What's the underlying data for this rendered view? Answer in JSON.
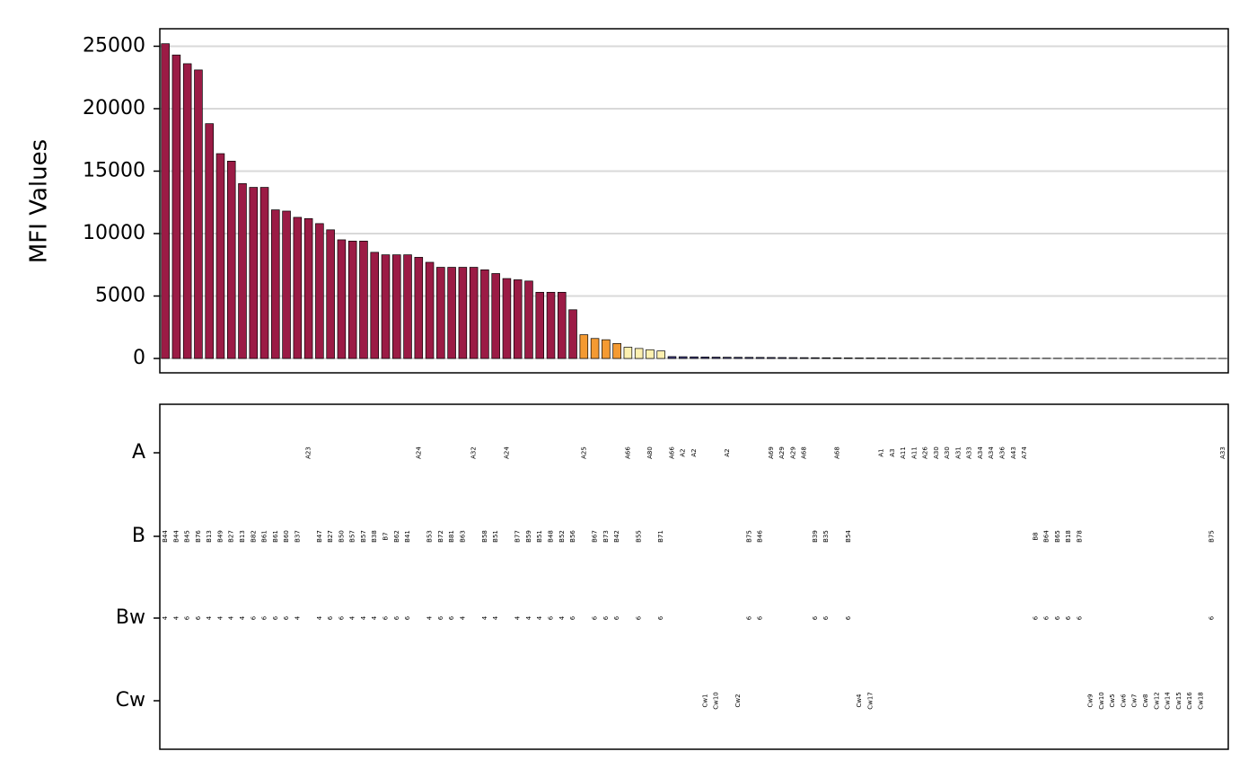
{
  "chart_data": {
    "type": "bar",
    "y_label": "MFI Values",
    "ylim": [
      -1150,
      26400
    ],
    "yticks": [
      0,
      5000,
      10000,
      15000,
      20000,
      25000
    ],
    "grid": true,
    "values": [
      25200,
      24300,
      23600,
      23100,
      18800,
      16400,
      15800,
      14000,
      13700,
      13700,
      11900,
      11800,
      11300,
      11200,
      10800,
      10300,
      9500,
      9400,
      9400,
      8500,
      8300,
      8300,
      8300,
      8100,
      7700,
      7300,
      7300,
      7300,
      7300,
      7100,
      6800,
      6400,
      6300,
      6200,
      5300,
      5300,
      5300,
      3900,
      1900,
      1600,
      1500,
      1200,
      900,
      800,
      700,
      600,
      150,
      140,
      130,
      120,
      110,
      100,
      95,
      90,
      85,
      80,
      75,
      70,
      65,
      60,
      55,
      50,
      45,
      40,
      38,
      36,
      34,
      32,
      30,
      28,
      26,
      24,
      22,
      20,
      19,
      18,
      17,
      16,
      15,
      14,
      13,
      12,
      11,
      10,
      9,
      8,
      7,
      6,
      5,
      5,
      4,
      4,
      3,
      3,
      2,
      2,
      1
    ],
    "colors": [
      "#9b1b45",
      "#9b1b45",
      "#9b1b45",
      "#9b1b45",
      "#9b1b45",
      "#9b1b45",
      "#9b1b45",
      "#9b1b45",
      "#9b1b45",
      "#9b1b45",
      "#9b1b45",
      "#9b1b45",
      "#9b1b45",
      "#9b1b45",
      "#9b1b45",
      "#9b1b45",
      "#9b1b45",
      "#9b1b45",
      "#9b1b45",
      "#9b1b45",
      "#9b1b45",
      "#9b1b45",
      "#9b1b45",
      "#9b1b45",
      "#9b1b45",
      "#9b1b45",
      "#9b1b45",
      "#9b1b45",
      "#9b1b45",
      "#9b1b45",
      "#9b1b45",
      "#9b1b45",
      "#9b1b45",
      "#9b1b45",
      "#9b1b45",
      "#9b1b45",
      "#9b1b45",
      "#9b1b45",
      "#f49a32",
      "#f49a32",
      "#f49a32",
      "#f49a32",
      "#fdf0b0",
      "#fdf0b0",
      "#fdf0b0",
      "#fdf0b0",
      "#3f3d7f",
      "#3f3d7f",
      "#3f3d7f",
      "#3f3d7f",
      "#3f3d7f",
      "#3f3d7f",
      "#3f3d7f",
      "#3f3d7f",
      "#3f3d7f",
      "#3f3d7f",
      "#3f3d7f",
      "#3f3d7f",
      "#3f3d7f",
      "#3f3d7f",
      "#3f3d7f",
      "#3f3d7f",
      "#3f3d7f",
      "#3f3d7f",
      "#3f3d7f",
      "#3f3d7f",
      "#3f3d7f",
      "#3f3d7f",
      "#3f3d7f",
      "#3f3d7f",
      "#3f3d7f",
      "#3f3d7f",
      "#3f3d7f",
      "#3f3d7f",
      "#3f3d7f",
      "#3f3d7f",
      "#3f3d7f",
      "#3f3d7f",
      "#3f3d7f",
      "#3f3d7f",
      "#3f3d7f",
      "#3f3d7f",
      "#3f3d7f",
      "#3f3d7f",
      "#3f3d7f",
      "#3f3d7f",
      "#3f3d7f",
      "#3f3d7f",
      "#3f3d7f",
      "#3f3d7f",
      "#3f3d7f",
      "#3f3d7f",
      "#3f3d7f",
      "#3f3d7f",
      "#3f3d7f",
      "#3f3d7f",
      "#3f3d7f"
    ],
    "rows": [
      {
        "name": "A",
        "labels": [
          null,
          null,
          null,
          null,
          null,
          null,
          null,
          null,
          null,
          null,
          null,
          null,
          null,
          "A23",
          null,
          null,
          null,
          null,
          null,
          null,
          null,
          null,
          null,
          "A24",
          null,
          null,
          null,
          null,
          "A32",
          null,
          null,
          "A24",
          null,
          null,
          null,
          null,
          null,
          null,
          "A25",
          null,
          null,
          null,
          "A66",
          null,
          "A80",
          null,
          "A66",
          "A2",
          "A2",
          null,
          null,
          "A2",
          null,
          null,
          null,
          "A69",
          "A29",
          "A29",
          "A68",
          null,
          null,
          "A68",
          null,
          null,
          null,
          "A1",
          "A3",
          "A11",
          "A11",
          "A26",
          "A30",
          "A30",
          "A31",
          "A33",
          "A34",
          "A34",
          "A36",
          "A43",
          "A74",
          null,
          null,
          null,
          null,
          null,
          null,
          null,
          null,
          null,
          null,
          null,
          null,
          null,
          null,
          null,
          null,
          null,
          "A33"
        ]
      },
      {
        "name": "B",
        "labels": [
          "B44",
          "B44",
          "B45",
          "B76",
          "B13",
          "B49",
          "B27",
          "B13",
          "B82",
          "B61",
          "B61",
          "B60",
          "B37",
          null,
          "B47",
          "B27",
          "B50",
          "B57",
          "B57",
          "B38",
          "B7",
          "B62",
          "B41",
          null,
          "B53",
          "B72",
          "B81",
          "B63",
          null,
          "B58",
          "B51",
          null,
          "B77",
          "B59",
          "B51",
          "B48",
          "B52",
          "B56",
          null,
          "B67",
          "B73",
          "B42",
          null,
          "B55",
          null,
          "B71",
          null,
          null,
          null,
          null,
          null,
          null,
          null,
          "B75",
          "B46",
          null,
          null,
          null,
          null,
          "B39",
          "B35",
          null,
          "B54",
          null,
          null,
          null,
          null,
          null,
          null,
          null,
          null,
          null,
          null,
          null,
          null,
          null,
          null,
          null,
          null,
          "B8",
          "B64",
          "B65",
          "B18",
          "B78",
          null,
          null,
          null,
          null,
          null,
          null,
          null,
          null,
          null,
          null,
          null,
          "B75",
          null
        ]
      },
      {
        "name": "Bw",
        "labels": [
          "4",
          "4",
          "6",
          "6",
          "4",
          "4",
          "4",
          "4",
          "6",
          "6",
          "6",
          "6",
          "4",
          null,
          "4",
          "6",
          "6",
          "4",
          "4",
          "4",
          "6",
          "6",
          "6",
          null,
          "4",
          "6",
          "6",
          "4",
          null,
          "4",
          "4",
          null,
          "4",
          "4",
          "4",
          "6",
          "4",
          "6",
          null,
          "6",
          "6",
          "6",
          null,
          "6",
          null,
          "6",
          null,
          null,
          null,
          null,
          null,
          null,
          null,
          "6",
          "6",
          null,
          null,
          null,
          null,
          "6",
          "6",
          null,
          "6",
          null,
          null,
          null,
          null,
          null,
          null,
          null,
          null,
          null,
          null,
          null,
          null,
          null,
          null,
          null,
          null,
          "6",
          "6",
          "6",
          "6",
          "6",
          null,
          null,
          null,
          null,
          null,
          null,
          null,
          null,
          null,
          null,
          null,
          "6",
          null
        ]
      },
      {
        "name": "Cw",
        "labels": [
          null,
          null,
          null,
          null,
          null,
          null,
          null,
          null,
          null,
          null,
          null,
          null,
          null,
          null,
          null,
          null,
          null,
          null,
          null,
          null,
          null,
          null,
          null,
          null,
          null,
          null,
          null,
          null,
          null,
          null,
          null,
          null,
          null,
          null,
          null,
          null,
          null,
          null,
          null,
          null,
          null,
          null,
          null,
          null,
          null,
          null,
          null,
          null,
          null,
          "Cw1",
          "Cw10",
          null,
          "Cw2",
          null,
          null,
          null,
          null,
          null,
          null,
          null,
          null,
          null,
          null,
          "Cw4",
          "Cw17",
          null,
          null,
          null,
          null,
          null,
          null,
          null,
          null,
          null,
          null,
          null,
          null,
          null,
          null,
          null,
          null,
          null,
          null,
          null,
          "Cw9",
          "Cw10",
          "Cw5",
          "Cw6",
          "Cw7",
          "Cw8",
          "Cw12",
          "Cw14",
          "Cw15",
          "Cw16",
          "Cw18",
          null,
          null
        ]
      }
    ]
  }
}
